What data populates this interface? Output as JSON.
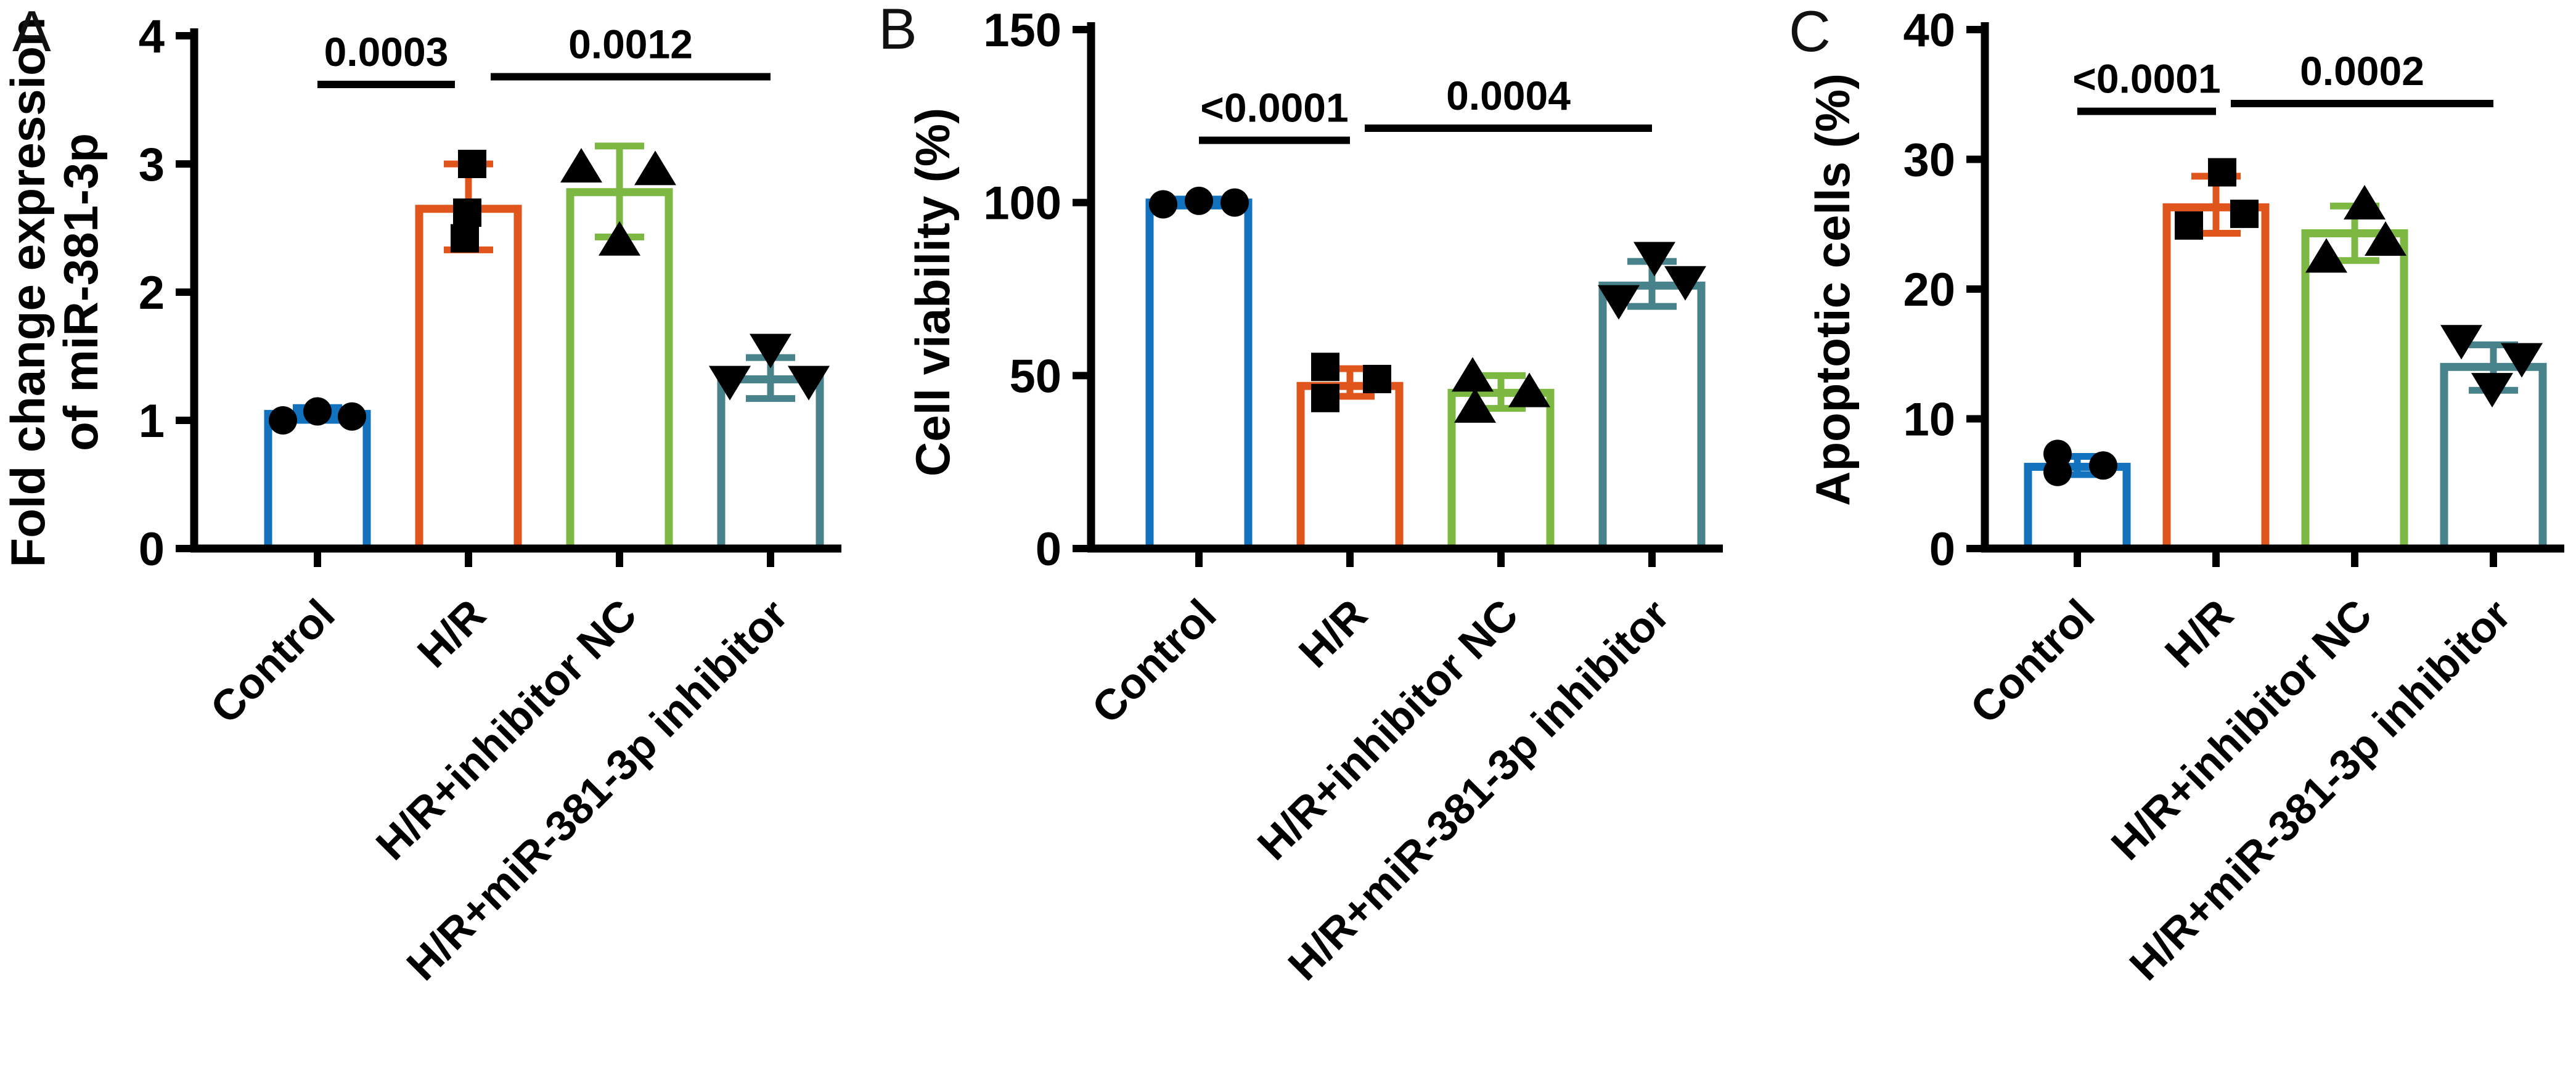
{
  "figure": {
    "background": "#ffffff",
    "text_color": "#000000",
    "marker_color": "#000000"
  },
  "chart_data": [
    {
      "panel_letter": "A",
      "type": "bar",
      "ylabel": "Fold change expression of miR-381-3p",
      "ylabel_lines": [
        "Fold change expression",
        "of miR-381-3p"
      ],
      "ylim": [
        0,
        4
      ],
      "yticks": [
        0,
        1,
        2,
        3,
        4
      ],
      "categories": [
        "Control",
        "H/R",
        "H/R+inhibitor NC",
        "H/R+miR-381-3p inhibitor"
      ],
      "bar_colors": [
        "#1272BE",
        "#E0551C",
        "#7CB842",
        "#48828A"
      ],
      "marker_shapes": [
        "circle",
        "square",
        "triangle-up",
        "triangle-down"
      ],
      "bars": [
        {
          "mean": 1.05,
          "err_lo": 1.0,
          "err_hi": 1.1,
          "points": [
            1.0,
            1.07,
            1.03
          ]
        },
        {
          "mean": 2.65,
          "err_lo": 2.33,
          "err_hi": 3.0,
          "points": [
            3.0,
            2.62,
            2.42
          ]
        },
        {
          "mean": 2.78,
          "err_lo": 2.43,
          "err_hi": 3.14,
          "points": [
            2.98,
            2.96,
            2.41
          ]
        },
        {
          "mean": 1.32,
          "err_lo": 1.17,
          "err_hi": 1.49,
          "points": [
            1.55,
            1.3,
            1.3
          ]
        }
      ],
      "significance": [
        {
          "pair": [
            0,
            1
          ],
          "label": "0.0003",
          "y": 3.62
        },
        {
          "pair": [
            1,
            3
          ],
          "label": "0.0012",
          "y": 3.68
        }
      ]
    },
    {
      "panel_letter": "B",
      "type": "bar",
      "ylabel": "Cell viability (%)",
      "ylabel_lines": [
        "Cell viability (%)"
      ],
      "ylim": [
        0,
        150
      ],
      "yticks": [
        0,
        50,
        100,
        150
      ],
      "categories": [
        "Control",
        "H/R",
        "H/R+inhibitor NC",
        "H/R+miR-381-3p inhibitor"
      ],
      "bar_colors": [
        "#1272BE",
        "#E0551C",
        "#7CB842",
        "#48828A"
      ],
      "marker_shapes": [
        "circle",
        "square",
        "triangle-up",
        "triangle-down"
      ],
      "bars": [
        {
          "mean": 100,
          "err_lo": 99,
          "err_hi": 101,
          "points": [
            99.5,
            100.5,
            100
          ]
        },
        {
          "mean": 47,
          "err_lo": 44,
          "err_hi": 52,
          "points": [
            52.5,
            43.5,
            49
          ]
        },
        {
          "mean": 45,
          "err_lo": 40.5,
          "err_hi": 50,
          "points": [
            50,
            41,
            45.5
          ]
        },
        {
          "mean": 76,
          "err_lo": 70,
          "err_hi": 83,
          "points": [
            71.5,
            84,
            77
          ]
        }
      ],
      "significance": [
        {
          "pair": [
            0,
            1
          ],
          "label": "<0.0001",
          "y": 118
        },
        {
          "pair": [
            1,
            3
          ],
          "label": "0.0004",
          "y": 121.5
        }
      ]
    },
    {
      "panel_letter": "C",
      "type": "bar",
      "ylabel": "Apoptotic cells (%)",
      "ylabel_lines": [
        "Apoptotic cells (%)"
      ],
      "ylim": [
        0,
        40
      ],
      "yticks": [
        0,
        10,
        20,
        30,
        40
      ],
      "categories": [
        "Control",
        "H/R",
        "H/R+inhibitor NC",
        "H/R+miR-381-3p inhibitor"
      ],
      "bar_colors": [
        "#1272BE",
        "#E0551C",
        "#7CB842",
        "#48828A"
      ],
      "marker_shapes": [
        "circle",
        "square",
        "triangle-up",
        "triangle-down"
      ],
      "bars": [
        {
          "mean": 6.3,
          "err_lo": 5.7,
          "err_hi": 7.1,
          "points": [
            7.3,
            5.9,
            6.4
          ]
        },
        {
          "mean": 26.3,
          "err_lo": 24.3,
          "err_hi": 28.7,
          "points": [
            29,
            24.9,
            25.8
          ]
        },
        {
          "mean": 24.3,
          "err_lo": 22.2,
          "err_hi": 26.4,
          "points": [
            26.6,
            22.5,
            23.8
          ]
        },
        {
          "mean": 14,
          "err_lo": 12.2,
          "err_hi": 15.7,
          "points": [
            16,
            12.3,
            14.6
          ]
        }
      ],
      "significance": [
        {
          "pair": [
            0,
            1
          ],
          "label": "<0.0001",
          "y": 33.7
        },
        {
          "pair": [
            1,
            3
          ],
          "label": "0.0002",
          "y": 34.3
        }
      ]
    }
  ]
}
